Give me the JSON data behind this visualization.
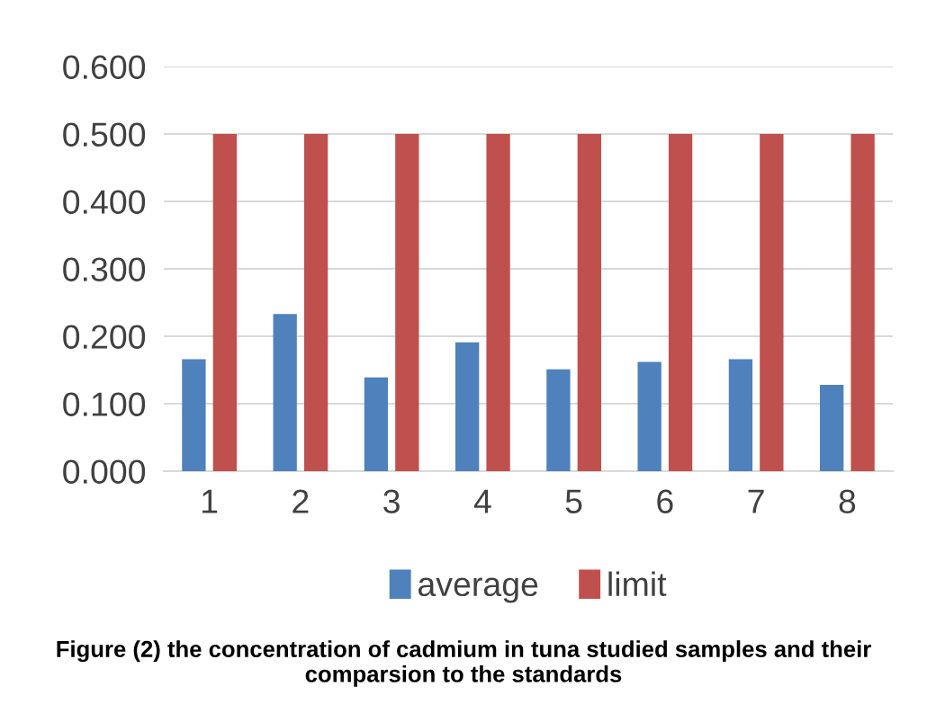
{
  "chart_data": {
    "type": "bar",
    "categories": [
      "1",
      "2",
      "3",
      "4",
      "5",
      "6",
      "7",
      "8"
    ],
    "series": [
      {
        "name": "average",
        "color": "#4f81bd",
        "values": [
          0.166,
          0.233,
          0.139,
          0.191,
          0.151,
          0.162,
          0.166,
          0.128
        ]
      },
      {
        "name": "limit",
        "color": "#c0504d",
        "values": [
          0.5,
          0.5,
          0.5,
          0.5,
          0.5,
          0.5,
          0.5,
          0.5
        ]
      }
    ],
    "ylim": [
      0,
      0.6
    ],
    "yticks": [
      {
        "value": 0,
        "label": "0.000"
      },
      {
        "value": 0.1,
        "label": "0.100"
      },
      {
        "value": 0.2,
        "label": "0.200"
      },
      {
        "value": 0.3,
        "label": "0.300"
      },
      {
        "value": 0.4,
        "label": "0.400"
      },
      {
        "value": 0.5,
        "label": "0.500"
      },
      {
        "value": 0.6,
        "label": "0.600"
      }
    ],
    "grid": "y",
    "legend": "bottom",
    "annotations": [
      "Figure (2) the concentration of cadmium in tuna studied samples and their comparsion to the standards"
    ]
  }
}
